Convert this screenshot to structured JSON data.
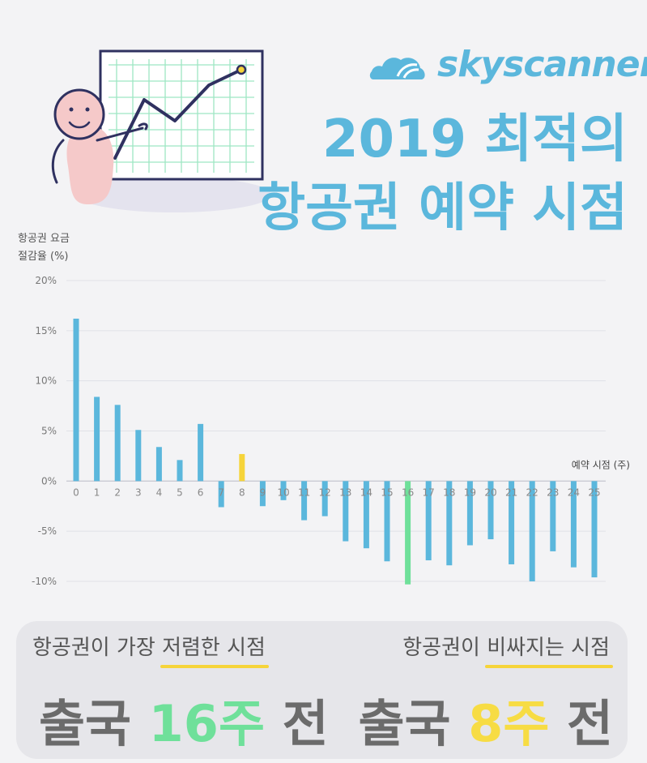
{
  "brand": {
    "name": "skyscanner",
    "color": "#5bb7dc"
  },
  "title": {
    "line1": "2019 최적의",
    "line2": "항공권 예약 시점"
  },
  "illustration": {
    "icon": "presenter-with-rising-chart-icon"
  },
  "chart_data": {
    "type": "bar",
    "ylabel_lines": [
      "항공권 요금",
      "절감율 (%)"
    ],
    "xlabel": "예약 시점 (주)",
    "categories": [
      "0",
      "1",
      "2",
      "3",
      "4",
      "5",
      "6",
      "7",
      "8",
      "9",
      "10",
      "11",
      "12",
      "13",
      "14",
      "15",
      "16",
      "17",
      "18",
      "19",
      "20",
      "21",
      "22",
      "23",
      "24",
      "25"
    ],
    "values": [
      16.2,
      8.4,
      7.6,
      5.1,
      3.4,
      2.1,
      5.7,
      -2.6,
      2.7,
      -2.5,
      -1.9,
      -3.9,
      -3.5,
      -6.0,
      -6.7,
      -8.0,
      -10.3,
      -7.9,
      -8.4,
      -6.4,
      -5.8,
      -8.3,
      -10.0,
      -7.0,
      -8.6,
      -9.6
    ],
    "ylim": [
      -10,
      20
    ],
    "yticks": [
      20,
      15,
      10,
      5,
      0,
      -5,
      -10
    ],
    "ytick_labels": [
      "20%",
      "15%",
      "10%",
      "5%",
      "0%",
      "-5%",
      "-10%"
    ],
    "grid": true,
    "colors": {
      "default": "#5bb7dc",
      "cheapest": "#6fe09a",
      "pricier": "#f6d43a"
    },
    "highlight": {
      "cheapest_index": 16,
      "pricier_index": 8
    }
  },
  "summary": {
    "left": {
      "prefix": "항공권이 가장 ",
      "highlight": "저렴한 시점",
      "big_prefix": "출국 ",
      "big_value": "16주",
      "big_suffix": " 전"
    },
    "right": {
      "prefix": "항공권이 ",
      "highlight": "비싸지는 시점",
      "big_prefix": "출국 ",
      "big_value": "8주",
      "big_suffix": " 전"
    }
  }
}
